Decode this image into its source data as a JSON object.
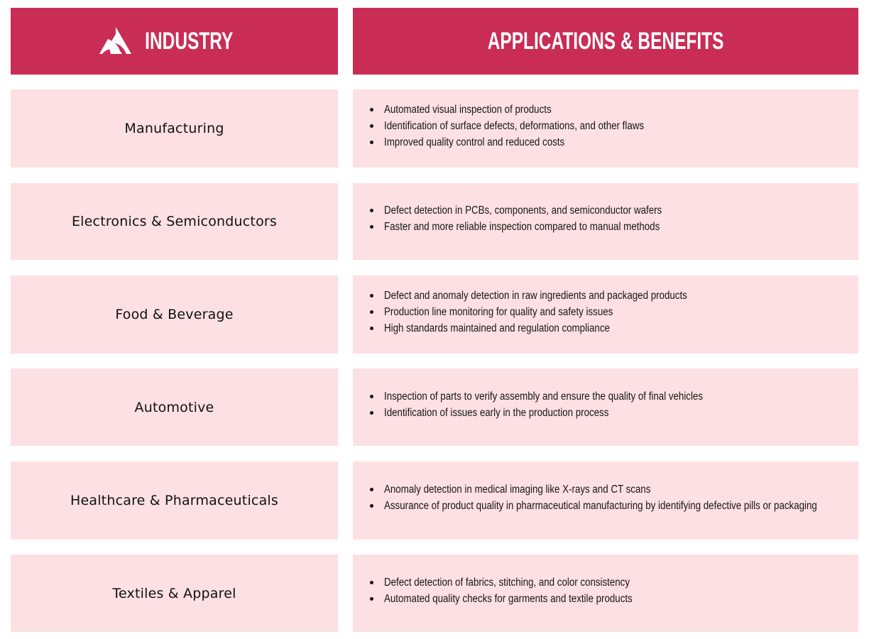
{
  "header": {
    "industry_title": "INDUSTRY",
    "applications_title": "APPLICATIONS & BENEFITS"
  },
  "colors": {
    "header_bg": "#c92c55",
    "cell_bg": "#fde0e3"
  },
  "rows": [
    {
      "industry": "Manufacturing",
      "benefits": [
        "Automated visual inspection of products",
        "Identification of surface defects, deformations, and other flaws",
        "Improved quality control and reduced costs"
      ]
    },
    {
      "industry": "Electronics & Semiconductors",
      "benefits": [
        "Defect detection in PCBs, components, and semiconductor wafers",
        "Faster and more reliable inspection compared to manual methods"
      ]
    },
    {
      "industry": "Food & Beverage",
      "benefits": [
        "Defect and anomaly detection in raw ingredients and packaged products",
        "Production line monitoring for quality and safety issues",
        "High standards maintained and regulation compliance"
      ]
    },
    {
      "industry": "Automotive",
      "benefits": [
        "Inspection of parts to verify assembly and ensure the quality of final vehicles",
        "Identification of issues early in the production process"
      ]
    },
    {
      "industry": "Healthcare & Pharmaceuticals",
      "benefits": [
        "Anomaly detection in medical imaging like X-rays and CT scans",
        "Assurance of product quality in pharmaceutical manufacturing by identifying defective pills or packaging"
      ]
    },
    {
      "industry": "Textiles & Apparel",
      "benefits": [
        "Defect detection of fabrics, stitching, and color consistency",
        "Automated quality checks for garments and textile products"
      ]
    }
  ]
}
